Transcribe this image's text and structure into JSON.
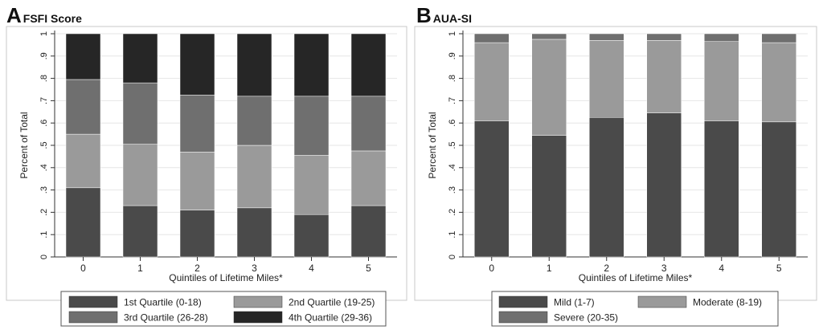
{
  "panels": [
    {
      "letter": "A",
      "name": "FSFI Score",
      "chart_data": {
        "type": "bar",
        "stacked": true,
        "title": "FSFI Score",
        "xlabel": "Quintiles of Lifetime Miles*",
        "ylabel": "Percent of Total",
        "ylim": [
          0,
          1
        ],
        "yticks": [
          "0",
          ".1",
          ".2",
          ".3",
          ".4",
          ".5",
          ".6",
          ".7",
          ".8",
          ".9",
          "1"
        ],
        "categories": [
          "0",
          "1",
          "2",
          "3",
          "4",
          "5"
        ],
        "series": [
          {
            "name": "1st Quartile (0-18)",
            "color": "#4a4a4a",
            "values": [
              0.31,
              0.23,
              0.21,
              0.22,
              0.19,
              0.23
            ]
          },
          {
            "name": "2nd Quartile (19-25)",
            "color": "#9a9a9a",
            "values": [
              0.24,
              0.275,
              0.26,
              0.28,
              0.265,
              0.245
            ]
          },
          {
            "name": "3rd Quartile (26-28)",
            "color": "#6f6f6f",
            "values": [
              0.245,
              0.275,
              0.255,
              0.22,
              0.265,
              0.245
            ]
          },
          {
            "name": "4th Quartile (29-36)",
            "color": "#262626",
            "values": [
              0.205,
              0.22,
              0.275,
              0.28,
              0.28,
              0.28
            ]
          }
        ],
        "legend": "bottom"
      }
    },
    {
      "letter": "B",
      "name": "AUA-SI",
      "chart_data": {
        "type": "bar",
        "stacked": true,
        "title": "AUA-SI",
        "xlabel": "Quintiles of Lifetime Miles*",
        "ylabel": "Percent of Total",
        "ylim": [
          0,
          1
        ],
        "yticks": [
          "0",
          ".1",
          ".2",
          ".3",
          ".4",
          ".5",
          ".6",
          ".7",
          ".8",
          ".9",
          "1"
        ],
        "categories": [
          "0",
          "1",
          "2",
          "3",
          "4",
          "5"
        ],
        "series": [
          {
            "name": "Mild (1-7)",
            "color": "#4a4a4a",
            "values": [
              0.61,
              0.545,
              0.625,
              0.645,
              0.61,
              0.605
            ]
          },
          {
            "name": "Moderate (8-19)",
            "color": "#9a9a9a",
            "values": [
              0.35,
              0.43,
              0.345,
              0.325,
              0.355,
              0.355
            ]
          },
          {
            "name": "Severe (20-35)",
            "color": "#6f6f6f",
            "values": [
              0.04,
              0.025,
              0.03,
              0.03,
              0.035,
              0.04
            ]
          }
        ],
        "legend": "bottom"
      }
    }
  ]
}
